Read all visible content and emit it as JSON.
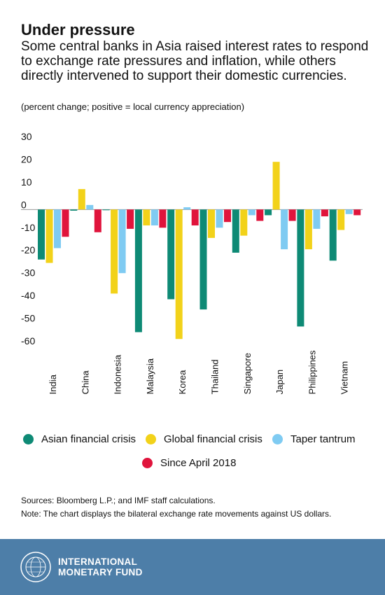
{
  "title": "Under pressure",
  "subtitle": "Some central banks in Asia raised interest rates to respond to exchange rate pressures and inflation, while others directly intervened to support their domestic currencies.",
  "note_top": "(percent change; positive = local currency appreciation)",
  "sources": "Sources: Bloomberg L.P.; and IMF staff calculations.",
  "note_bottom": "Note: The chart displays the bilateral exchange rate movements against US dollars.",
  "footer": {
    "line1": "INTERNATIONAL",
    "line2": "MONETARY FUND"
  },
  "chart_data": {
    "type": "bar",
    "categories": [
      "India",
      "China",
      "Indonesia",
      "Malaysia",
      "Korea",
      "Thailand",
      "Singapore",
      "Japan",
      "Philippines",
      "Vietnam"
    ],
    "series": [
      {
        "name": "Asian financial crisis",
        "color": "#0e8a75",
        "values": [
          -22,
          -0.5,
          -0.3,
          -54,
          -39.5,
          -44,
          -19,
          -2.5,
          -51.5,
          -22.5
        ]
      },
      {
        "name": "Global financial crisis",
        "color": "#f2d21a",
        "values": [
          -23.5,
          9,
          -37,
          -7,
          -57,
          -12.5,
          -11.5,
          21,
          -17.5,
          -9
        ]
      },
      {
        "name": "Taper tantrum",
        "color": "#7fcbf2",
        "values": [
          -17,
          2,
          -28,
          -7,
          1,
          -8,
          -2.5,
          -17.5,
          -8.5,
          -2
        ]
      },
      {
        "name": "Since April 2018",
        "color": "#e0143c",
        "values": [
          -12,
          -10,
          -8.5,
          -8,
          -7,
          -5.5,
          -5,
          -5,
          -3,
          -2.5
        ]
      }
    ],
    "ylim": [
      -60,
      30
    ],
    "yticks": [
      "30",
      "20",
      "10",
      "0",
      "-10",
      "-20",
      "-30",
      "-40",
      "-50",
      "-60"
    ],
    "xlabel": "",
    "ylabel": "",
    "grid": false,
    "legend_position": "bottom"
  }
}
